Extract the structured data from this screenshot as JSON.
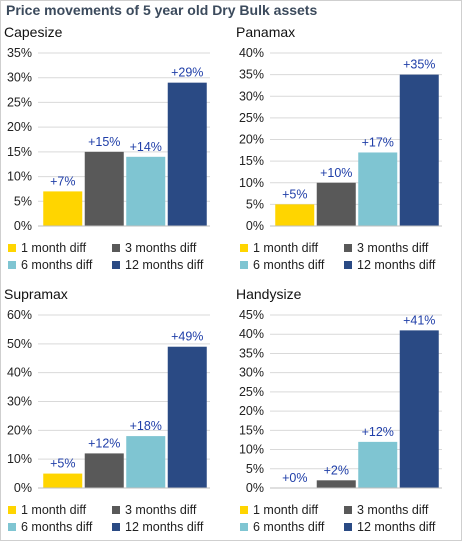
{
  "title": "Price movements of 5 year old Dry Bulk assets",
  "colors": {
    "one_month": "#FFD500",
    "three_months": "#595959",
    "six_months": "#7FC5D2",
    "twelve_months": "#2A4A84",
    "label": "#1f3ea8",
    "grid": "#d9d9d9"
  },
  "chart_data": [
    {
      "type": "bar",
      "title": "Capesize",
      "categories": [
        "1 month diff",
        "3 months diff",
        "6 months diff",
        "12 months diff"
      ],
      "values": [
        7,
        15,
        14,
        29
      ],
      "data_labels": [
        "+7%",
        "+15%",
        "+14%",
        "+29%"
      ],
      "yticks": [
        "0%",
        "5%",
        "10%",
        "15%",
        "20%",
        "25%",
        "30%",
        "35%"
      ],
      "ylim": [
        0,
        35
      ],
      "grid": true,
      "legend": "bottom"
    },
    {
      "type": "bar",
      "title": "Panamax",
      "categories": [
        "1 month diff",
        "3 months diff",
        "6 months diff",
        "12 months diff"
      ],
      "values": [
        5,
        10,
        17,
        35
      ],
      "data_labels": [
        "+5%",
        "+10%",
        "+17%",
        "+35%"
      ],
      "yticks": [
        "0%",
        "5%",
        "10%",
        "15%",
        "20%",
        "25%",
        "30%",
        "35%",
        "40%"
      ],
      "ylim": [
        0,
        40
      ],
      "grid": true,
      "legend": "bottom"
    },
    {
      "type": "bar",
      "title": "Supramax",
      "categories": [
        "1 month diff",
        "3 months diff",
        "6 months diff",
        "12 months diff"
      ],
      "values": [
        5,
        12,
        18,
        49
      ],
      "data_labels": [
        "+5%",
        "+12%",
        "+18%",
        "+49%"
      ],
      "yticks": [
        "0%",
        "10%",
        "20%",
        "30%",
        "40%",
        "50%",
        "60%"
      ],
      "ylim": [
        0,
        60
      ],
      "grid": true,
      "legend": "bottom"
    },
    {
      "type": "bar",
      "title": "Handysize",
      "categories": [
        "1 month diff",
        "3 months diff",
        "6 months diff",
        "12 months diff"
      ],
      "values": [
        0,
        2,
        12,
        41
      ],
      "data_labels": [
        "+0%",
        "+2%",
        "+12%",
        "+41%"
      ],
      "yticks": [
        "0%",
        "5%",
        "10%",
        "15%",
        "20%",
        "25%",
        "30%",
        "35%",
        "40%",
        "45%"
      ],
      "ylim": [
        0,
        45
      ],
      "grid": true,
      "legend": "bottom"
    }
  ]
}
